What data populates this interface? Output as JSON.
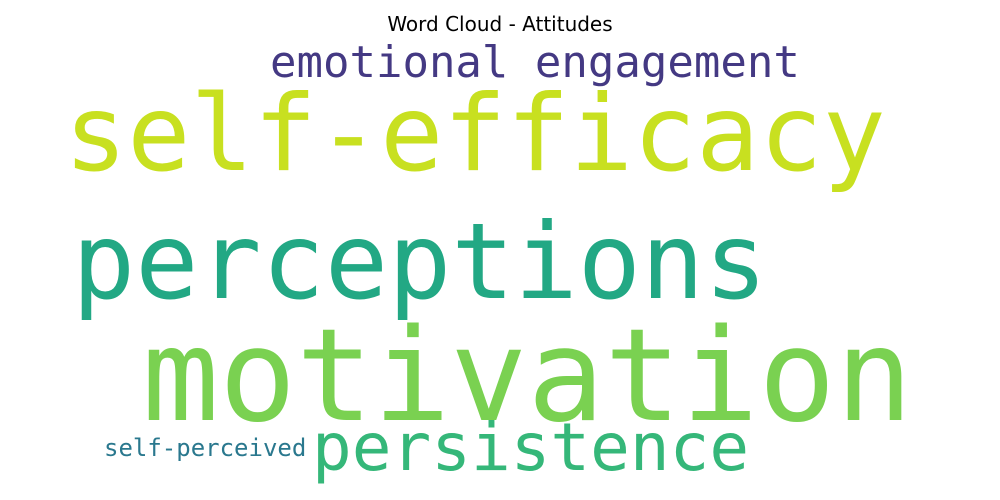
{
  "chart_data": {
    "type": "wordcloud",
    "title": "Word Cloud - Attitudes",
    "words": [
      {
        "text": "motivation",
        "weight": 1.0,
        "color": "#7ad151"
      },
      {
        "text": "self-efficacy",
        "weight": 0.82,
        "color": "#c8e020"
      },
      {
        "text": "perceptions",
        "weight": 0.82,
        "color": "#22a884"
      },
      {
        "text": "persistence",
        "weight": 0.56,
        "color": "#35b779"
      },
      {
        "text": "emotional engagement",
        "weight": 0.41,
        "color": "#443983"
      },
      {
        "text": "self-perceived",
        "weight": 0.26,
        "color": "#2a788e"
      }
    ]
  }
}
